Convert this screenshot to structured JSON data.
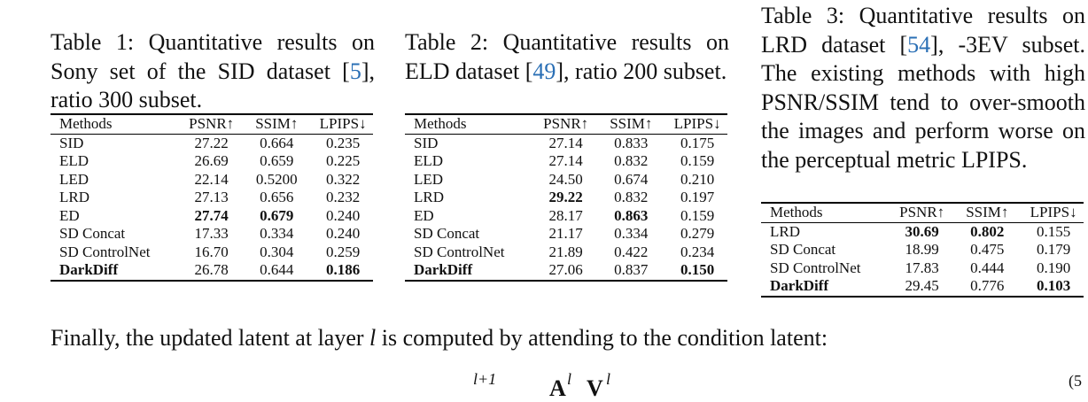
{
  "tables": [
    {
      "caption": {
        "before": "Table 1: Quantitative results on Sony set of the SID dataset [",
        "cite": "5",
        "after": "], ratio 300 subset."
      },
      "header": [
        "Methods",
        "PSNR↑",
        "SSIM↑",
        "LPIPS↓"
      ],
      "rows": [
        [
          "SID",
          "27.22",
          "0.664",
          "0.235"
        ],
        [
          "ELD",
          "26.69",
          "0.659",
          "0.225"
        ],
        [
          "LED",
          "22.14",
          "0.5200",
          "0.322"
        ],
        [
          "LRD",
          "27.13",
          "0.656",
          "0.232"
        ],
        [
          "ED",
          "27.74",
          "0.679",
          "0.240"
        ],
        [
          "SD Concat",
          "17.33",
          "0.334",
          "0.240"
        ],
        [
          "SD ControlNet",
          "16.70",
          "0.304",
          "0.259"
        ],
        [
          "DarkDiff",
          "26.78",
          "0.644",
          "0.186"
        ]
      ]
    },
    {
      "caption": {
        "before": "Table 2: Quantitative results on ELD dataset [",
        "cite": "49",
        "after": "], ratio 200 subset."
      },
      "header": [
        "Methods",
        "PSNR↑",
        "SSIM↑",
        "LPIPS↓"
      ],
      "rows": [
        [
          "SID",
          "27.14",
          "0.833",
          "0.175"
        ],
        [
          "ELD",
          "27.14",
          "0.832",
          "0.159"
        ],
        [
          "LED",
          "24.50",
          "0.674",
          "0.210"
        ],
        [
          "LRD",
          "29.22",
          "0.832",
          "0.197"
        ],
        [
          "ED",
          "28.17",
          "0.863",
          "0.159"
        ],
        [
          "SD Concat",
          "21.17",
          "0.334",
          "0.279"
        ],
        [
          "SD ControlNet",
          "21.89",
          "0.422",
          "0.234"
        ],
        [
          "DarkDiff",
          "27.06",
          "0.837",
          "0.150"
        ]
      ]
    },
    {
      "caption": {
        "before": "Table 3: Quantitative results on LRD dataset [",
        "cite": "54",
        "after": "], -3EV subset. The existing methods with high PSNR/SSIM tend to over-smooth the images and perform worse on the perceptual metric LPIPS."
      },
      "header": [
        "Methods",
        "PSNR↑",
        "SSIM↑",
        "LPIPS↓"
      ],
      "rows": [
        [
          "LRD",
          "30.69",
          "0.802",
          "0.155"
        ],
        [
          "SD Concat",
          "18.99",
          "0.475",
          "0.179"
        ],
        [
          "SD ControlNet",
          "17.83",
          "0.444",
          "0.190"
        ],
        [
          "DarkDiff",
          "29.45",
          "0.776",
          "0.103"
        ]
      ]
    }
  ],
  "paragraph": {
    "before": "Finally, the updated latent at layer ",
    "var": "l",
    "after": " is computed by attending to the condition latent:"
  },
  "equation": {
    "lhs_sup": "l+1",
    "a": "A",
    "a_sup": "l",
    "v": "V",
    "v_sup": "l",
    "number": "(5"
  }
}
